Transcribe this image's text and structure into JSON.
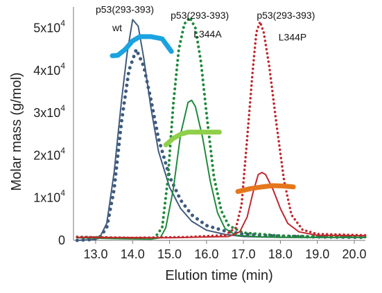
{
  "chart_data": {
    "type": "line",
    "xlabel": "Elution time (min)",
    "ylabel": "Molar mass (g/mol)",
    "xlim": [
      12.4,
      20.3
    ],
    "ylim": [
      0,
      55000
    ],
    "x_ticks": [
      {
        "value": 13,
        "label": "13.0"
      },
      {
        "value": 14,
        "label": "14.0"
      },
      {
        "value": 15,
        "label": "15.0"
      },
      {
        "value": 16,
        "label": "16.0"
      },
      {
        "value": 17,
        "label": "17.0"
      },
      {
        "value": 18,
        "label": "18.0"
      },
      {
        "value": 19,
        "label": "19.0"
      },
      {
        "value": 20,
        "label": "20.0"
      }
    ],
    "y_ticks": [
      {
        "value": 0,
        "mantissa": "0",
        "exponent": ""
      },
      {
        "value": 10000,
        "mantissa": "1x10",
        "exponent": "4"
      },
      {
        "value": 20000,
        "mantissa": "2x10",
        "exponent": "4"
      },
      {
        "value": 30000,
        "mantissa": "3x10",
        "exponent": "4"
      },
      {
        "value": 40000,
        "mantissa": "4x10",
        "exponent": "4"
      },
      {
        "value": 50000,
        "mantissa": "5x10",
        "exponent": "4"
      }
    ],
    "grid": false,
    "annotations": [
      {
        "id": "wt-name",
        "text": "p53(293-393)",
        "x": 13.0,
        "y": 53600
      },
      {
        "id": "wt-variant",
        "text": "wt",
        "x": 13.45,
        "y": 49300
      },
      {
        "id": "l344a-name",
        "text": "p53(293-393)",
        "x": 15.03,
        "y": 52200
      },
      {
        "id": "l344a-variant",
        "text": "L344A",
        "x": 15.65,
        "y": 47800
      },
      {
        "id": "l344p-name",
        "text": "p53(293-393)",
        "x": 17.36,
        "y": 52200
      },
      {
        "id": "l344p-variant",
        "text": "L344P",
        "x": 17.95,
        "y": 47100
      }
    ],
    "series": [
      {
        "key": "wt-solid",
        "color": "#3f5b7d",
        "style": "solid",
        "width": 2,
        "points": [
          [
            12.5,
            0
          ],
          [
            12.9,
            150
          ],
          [
            13.1,
            500
          ],
          [
            13.3,
            4000
          ],
          [
            13.5,
            16000
          ],
          [
            13.7,
            33000
          ],
          [
            13.85,
            44000
          ],
          [
            14.0,
            52000
          ],
          [
            14.15,
            50500
          ],
          [
            14.3,
            43000
          ],
          [
            14.5,
            31000
          ],
          [
            14.7,
            21000
          ],
          [
            15.0,
            12500
          ],
          [
            15.3,
            7500
          ],
          [
            15.6,
            4500
          ],
          [
            16.0,
            2400
          ],
          [
            16.5,
            1400
          ],
          [
            17.0,
            900
          ],
          [
            18.0,
            700
          ],
          [
            19.0,
            700
          ],
          [
            20.3,
            700
          ]
        ]
      },
      {
        "key": "wt-dotted",
        "color": "#3f5b7d",
        "style": "dotted",
        "width": 5,
        "points": [
          [
            12.5,
            0
          ],
          [
            12.9,
            200
          ],
          [
            13.1,
            600
          ],
          [
            13.3,
            3000
          ],
          [
            13.5,
            12000
          ],
          [
            13.7,
            28000
          ],
          [
            13.9,
            40000
          ],
          [
            14.1,
            45000
          ],
          [
            14.3,
            41000
          ],
          [
            14.5,
            33000
          ],
          [
            14.7,
            24000
          ],
          [
            15.0,
            15000
          ],
          [
            15.3,
            9500
          ],
          [
            15.6,
            6000
          ],
          [
            16.0,
            3500
          ],
          [
            16.5,
            2200
          ],
          [
            17.0,
            1500
          ],
          [
            17.5,
            1200
          ],
          [
            18.0,
            1000
          ],
          [
            19.0,
            800
          ],
          [
            20.3,
            700
          ]
        ]
      },
      {
        "key": "l344a-solid",
        "color": "#1f8a3a",
        "style": "solid",
        "width": 2,
        "points": [
          [
            12.5,
            600
          ],
          [
            13.5,
            400
          ],
          [
            14.5,
            300
          ],
          [
            14.75,
            600
          ],
          [
            14.9,
            3000
          ],
          [
            15.1,
            12000
          ],
          [
            15.3,
            25000
          ],
          [
            15.5,
            32500
          ],
          [
            15.6,
            33000
          ],
          [
            15.7,
            31500
          ],
          [
            15.9,
            24000
          ],
          [
            16.1,
            14000
          ],
          [
            16.3,
            6500
          ],
          [
            16.5,
            2800
          ],
          [
            16.8,
            1200
          ],
          [
            17.5,
            800
          ],
          [
            18.5,
            700
          ],
          [
            20.3,
            700
          ]
        ]
      },
      {
        "key": "l344a-dotted",
        "color": "#1f8a3a",
        "style": "dotted",
        "width": 4,
        "points": [
          [
            12.5,
            800
          ],
          [
            14.0,
            500
          ],
          [
            14.6,
            600
          ],
          [
            14.8,
            3000
          ],
          [
            14.95,
            14000
          ],
          [
            15.1,
            32000
          ],
          [
            15.25,
            45000
          ],
          [
            15.4,
            51000
          ],
          [
            15.55,
            52500
          ],
          [
            15.7,
            50000
          ],
          [
            15.85,
            42000
          ],
          [
            16.0,
            30000
          ],
          [
            16.2,
            15000
          ],
          [
            16.4,
            7000
          ],
          [
            16.6,
            3500
          ],
          [
            17.0,
            1800
          ],
          [
            18.0,
            1100
          ],
          [
            19.0,
            900
          ],
          [
            20.3,
            800
          ]
        ]
      },
      {
        "key": "l344p-solid",
        "color": "#c0282d",
        "style": "solid",
        "width": 2,
        "points": [
          [
            12.5,
            700
          ],
          [
            15.0,
            600
          ],
          [
            16.0,
            800
          ],
          [
            16.6,
            900
          ],
          [
            16.9,
            2000
          ],
          [
            17.1,
            5500
          ],
          [
            17.25,
            11000
          ],
          [
            17.4,
            15500
          ],
          [
            17.5,
            16000
          ],
          [
            17.6,
            15500
          ],
          [
            17.8,
            12000
          ],
          [
            18.0,
            7500
          ],
          [
            18.2,
            4000
          ],
          [
            18.5,
            2000
          ],
          [
            19.0,
            1200
          ],
          [
            20.3,
            1100
          ]
        ]
      },
      {
        "key": "l344p-dotted",
        "color": "#c0282d",
        "style": "dotted",
        "width": 3.5,
        "points": [
          [
            12.5,
            800
          ],
          [
            14.0,
            600
          ],
          [
            15.5,
            800
          ],
          [
            16.5,
            1200
          ],
          [
            16.8,
            3000
          ],
          [
            16.95,
            8500
          ],
          [
            17.1,
            24000
          ],
          [
            17.25,
            40000
          ],
          [
            17.35,
            49000
          ],
          [
            17.45,
            51500
          ],
          [
            17.55,
            49000
          ],
          [
            17.7,
            41000
          ],
          [
            17.9,
            27000
          ],
          [
            18.1,
            14000
          ],
          [
            18.3,
            6000
          ],
          [
            18.6,
            2500
          ],
          [
            19.0,
            1500
          ],
          [
            20.3,
            1200
          ]
        ]
      },
      {
        "key": "wt-mass",
        "color": "#1aa3e0",
        "style": "solid",
        "width": 7,
        "points": [
          [
            13.45,
            43500
          ],
          [
            13.6,
            43600
          ],
          [
            13.8,
            45000
          ],
          [
            14.0,
            47000
          ],
          [
            14.2,
            48000
          ],
          [
            14.5,
            48000
          ],
          [
            14.8,
            47500
          ],
          [
            15.05,
            44500
          ]
        ]
      },
      {
        "key": "l344a-mass",
        "color": "#8fcf4a",
        "style": "solid",
        "width": 7,
        "points": [
          [
            14.9,
            22500
          ],
          [
            15.1,
            24000
          ],
          [
            15.3,
            25000
          ],
          [
            15.5,
            25500
          ],
          [
            15.8,
            25500
          ],
          [
            16.1,
            25500
          ],
          [
            16.35,
            25500
          ]
        ]
      },
      {
        "key": "l344p-mass",
        "color": "#e5761c",
        "style": "solid",
        "width": 7,
        "points": [
          [
            16.85,
            11500
          ],
          [
            17.0,
            11800
          ],
          [
            17.2,
            12200
          ],
          [
            17.5,
            12600
          ],
          [
            17.8,
            12900
          ],
          [
            18.1,
            12800
          ],
          [
            18.35,
            12600
          ]
        ]
      }
    ]
  }
}
